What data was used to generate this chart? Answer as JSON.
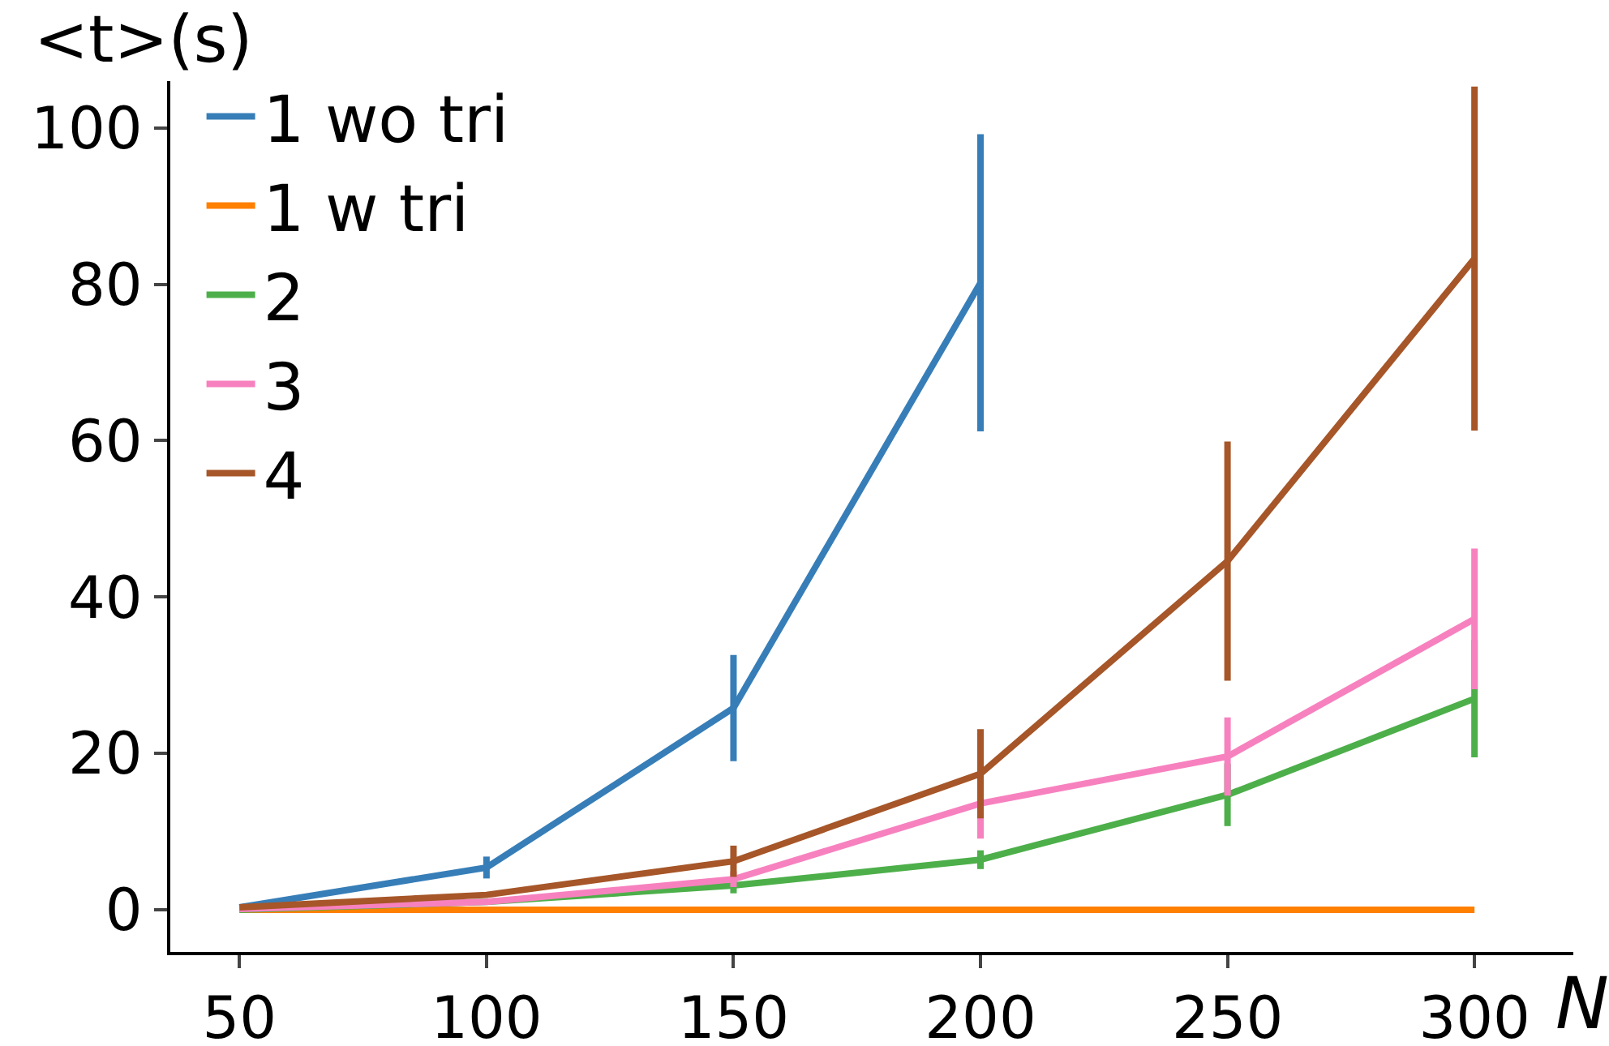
{
  "chart_data": {
    "type": "line",
    "xlabel": "N",
    "ylabel": "<t>(s)",
    "x": [
      50,
      100,
      150,
      200,
      250,
      300
    ],
    "series": [
      {
        "name": "1 wo tri",
        "color": "#377eb8",
        "x": [
          50,
          100,
          150,
          200
        ],
        "values": [
          0.3,
          5.4,
          25.8,
          80.2
        ],
        "errors": [
          null,
          1.4,
          6.8,
          19
        ]
      },
      {
        "name": "1 w tri",
        "color": "#ff7f00",
        "values": [
          0,
          0,
          0,
          0,
          0,
          0
        ]
      },
      {
        "name": "2",
        "color": "#4daf4a",
        "values": [
          0,
          1.0,
          3.1,
          6.4,
          14.7,
          27
        ],
        "errors": [
          null,
          null,
          1,
          1.2,
          4,
          7.5
        ]
      },
      {
        "name": "3",
        "color": "#f781bf",
        "values": [
          0.1,
          1.0,
          3.9,
          13.6,
          19.6,
          37.2
        ],
        "errors": [
          null,
          null,
          1,
          4.5,
          5,
          9
        ]
      },
      {
        "name": "4",
        "color": "#a65628",
        "values": [
          0.3,
          1.9,
          6.2,
          17.4,
          44.6,
          83.3
        ],
        "errors": [
          null,
          null,
          2,
          5.7,
          15.3,
          22
        ]
      }
    ],
    "xlim": [
      36,
      320
    ],
    "ylim": [
      -5.4,
      106
    ],
    "xticks": [
      50,
      100,
      150,
      200,
      250,
      300
    ],
    "yticks": [
      0,
      20,
      40,
      60,
      80,
      100
    ],
    "legend": "top left",
    "grid": false,
    "marker": "none",
    "line_style": "solid"
  }
}
